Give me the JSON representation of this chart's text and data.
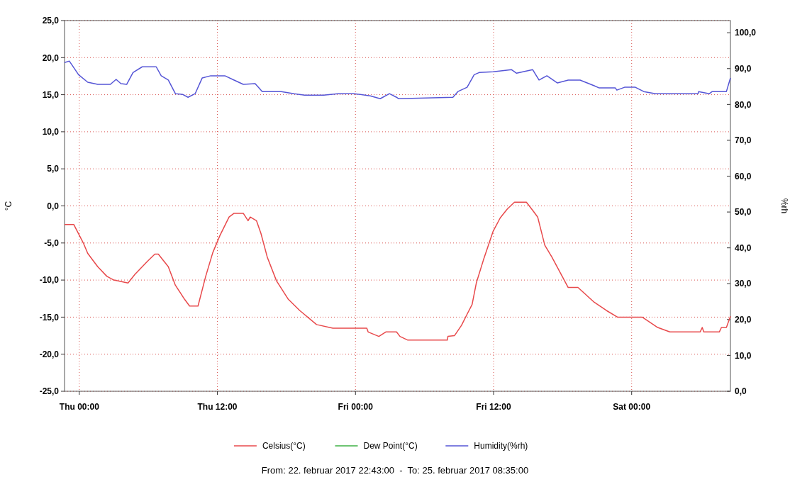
{
  "chart_data": {
    "type": "line",
    "ylabel": "°C",
    "y2label": "%rh",
    "xlim": [
      "2017-02-22T22:43",
      "2017-02-25T08:35"
    ],
    "xticks": [
      {
        "value": "2017-02-23T00:00",
        "label": "Thu 00:00"
      },
      {
        "value": "2017-02-23T12:00",
        "label": "Thu 12:00"
      },
      {
        "value": "2017-02-24T00:00",
        "label": "Fri 00:00"
      },
      {
        "value": "2017-02-24T12:00",
        "label": "Fri 12:00"
      },
      {
        "value": "2017-02-25T00:00",
        "label": "Sat 00:00"
      }
    ],
    "ylim": [
      -25,
      25
    ],
    "yticks": [
      {
        "value": -25,
        "label": "-25,0"
      },
      {
        "value": -20,
        "label": "-20,0"
      },
      {
        "value": -15,
        "label": "-15,0"
      },
      {
        "value": -10,
        "label": "-10,0"
      },
      {
        "value": -5,
        "label": "-5,0"
      },
      {
        "value": 0,
        "label": "0,0"
      },
      {
        "value": 5,
        "label": "5,0"
      },
      {
        "value": 10,
        "label": "10,0"
      },
      {
        "value": 15,
        "label": "15,0"
      },
      {
        "value": 20,
        "label": "20,0"
      },
      {
        "value": 25,
        "label": "25,0"
      }
    ],
    "y2lim": [
      0,
      103.4
    ],
    "y2ticks": [
      {
        "value": 0,
        "label": "0,0"
      },
      {
        "value": 10,
        "label": "10,0"
      },
      {
        "value": 20,
        "label": "20,0"
      },
      {
        "value": 30,
        "label": "30,0"
      },
      {
        "value": 40,
        "label": "40,0"
      },
      {
        "value": 50,
        "label": "50,0"
      },
      {
        "value": 60,
        "label": "60,0"
      },
      {
        "value": 70,
        "label": "70,0"
      },
      {
        "value": 80,
        "label": "80,0"
      },
      {
        "value": 90,
        "label": "90,0"
      },
      {
        "value": 100,
        "label": "100,0"
      }
    ],
    "grid": true,
    "legend": "bottom",
    "annotations": [
      "From: 22. februar 2017 22:43:00  -  To: 25. februar 2017 08:35:00"
    ],
    "series": [
      {
        "name": "Celsius(°C)",
        "color": "#e8494b",
        "x": [
          "2017-02-22T22:43",
          "2017-02-22T23:31",
          "2017-02-23T00:21",
          "2017-02-23T00:44",
          "2017-02-23T01:36",
          "2017-02-23T02:24",
          "2017-02-23T03:00",
          "2017-02-23T04:14",
          "2017-02-23T04:51",
          "2017-02-23T05:54",
          "2017-02-23T06:34",
          "2017-02-23T06:52",
          "2017-02-23T07:44",
          "2017-02-23T08:21",
          "2017-02-23T09:09",
          "2017-02-23T09:35",
          "2017-02-23T10:19",
          "2017-02-23T10:59",
          "2017-02-23T11:36",
          "2017-02-23T12:13",
          "2017-02-23T13:01",
          "2017-02-23T13:27",
          "2017-02-23T14:15",
          "2017-02-23T14:40",
          "2017-02-23T14:51",
          "2017-02-23T15:24",
          "2017-02-23T15:47",
          "2017-02-23T16:20",
          "2017-02-23T17:08",
          "2017-02-23T18:10",
          "2017-02-23T19:09",
          "2017-02-23T20:37",
          "2017-02-23T22:02",
          "2017-02-24T00:59",
          "2017-02-24T01:06",
          "2017-02-24T02:02",
          "2017-02-24T02:38",
          "2017-02-24T03:34",
          "2017-02-24T03:52",
          "2017-02-24T04:33",
          "2017-02-24T07:59",
          "2017-02-24T08:02",
          "2017-02-24T08:36",
          "2017-02-24T09:13",
          "2017-02-24T09:42",
          "2017-02-24T10:08",
          "2017-02-24T10:30",
          "2017-02-24T11:07",
          "2017-02-24T11:58",
          "2017-02-24T12:35",
          "2017-02-24T13:12",
          "2017-02-24T13:49",
          "2017-02-24T14:51",
          "2017-02-24T15:24",
          "2017-02-24T15:50",
          "2017-02-24T16:27",
          "2017-02-24T17:04",
          "2017-02-24T18:29",
          "2017-02-24T19:20",
          "2017-02-24T20:45",
          "2017-02-24T21:48",
          "2017-02-24T22:46",
          "2017-02-25T00:55",
          "2017-02-25T02:16",
          "2017-02-25T03:19",
          "2017-02-25T05:57",
          "2017-02-25T06:08",
          "2017-02-25T06:16",
          "2017-02-25T07:37",
          "2017-02-25T07:48",
          "2017-02-25T08:14",
          "2017-02-25T08:35"
        ],
        "values": [
          -2.5,
          -2.5,
          -5.0,
          -6.4,
          -8.2,
          -9.5,
          -10.0,
          -10.4,
          -9.2,
          -7.5,
          -6.5,
          -6.5,
          -8.2,
          -10.7,
          -12.6,
          -13.5,
          -13.5,
          -9.5,
          -6.3,
          -4.0,
          -1.5,
          -1.0,
          -1.0,
          -2.0,
          -1.5,
          -2.0,
          -3.7,
          -6.9,
          -10.1,
          -12.6,
          -14.1,
          -16.0,
          -16.5,
          -16.5,
          -17.0,
          -17.6,
          -17.0,
          -17.0,
          -17.6,
          -18.1,
          -18.1,
          -17.6,
          -17.5,
          -16.1,
          -14.6,
          -13.3,
          -10.4,
          -7.3,
          -3.4,
          -1.6,
          -0.4,
          0.5,
          0.5,
          -0.6,
          -1.5,
          -5.3,
          -6.9,
          -11.0,
          -11.0,
          -13.0,
          -14.1,
          -15.0,
          -15.0,
          -16.4,
          -17.0,
          -17.0,
          -16.4,
          -17.0,
          -17.0,
          -16.4,
          -16.4,
          -14.9
        ]
      },
      {
        "name": "Dew Point(°C)",
        "color": "#3cb043"
      },
      {
        "name": "Humidity(%rh)",
        "color": "#5555d6",
        "axis": "y2",
        "x": [
          "2017-02-22T22:43",
          "2017-02-22T23:08",
          "2017-02-22T23:56",
          "2017-02-23T00:44",
          "2017-02-23T01:36",
          "2017-02-23T02:42",
          "2017-02-23T03:12",
          "2017-02-23T03:37",
          "2017-02-23T04:07",
          "2017-02-23T04:40",
          "2017-02-23T05:28",
          "2017-02-23T06:41",
          "2017-02-23T07:07",
          "2017-02-23T07:44",
          "2017-02-23T08:21",
          "2017-02-23T08:58",
          "2017-02-23T09:27",
          "2017-02-23T10:04",
          "2017-02-23T10:41",
          "2017-02-23T11:25",
          "2017-02-23T12:39",
          "2017-02-23T13:27",
          "2017-02-23T14:15",
          "2017-02-23T15:17",
          "2017-02-23T15:54",
          "2017-02-23T17:33",
          "2017-02-23T18:40",
          "2017-02-23T19:35",
          "2017-02-23T21:14",
          "2017-02-23T22:28",
          "2017-02-23T23:53",
          "2017-02-24T01:17",
          "2017-02-24T02:09",
          "2017-02-24T02:57",
          "2017-02-24T03:34",
          "2017-02-24T03:45",
          "2017-02-24T08:28",
          "2017-02-24T08:54",
          "2017-02-24T09:42",
          "2017-02-24T10:19",
          "2017-02-24T10:45",
          "2017-02-24T11:58",
          "2017-02-24T13:34",
          "2017-02-24T14:00",
          "2017-02-24T15:24",
          "2017-02-24T15:57",
          "2017-02-24T16:38",
          "2017-02-24T17:33",
          "2017-02-24T18:29",
          "2017-02-24T19:31",
          "2017-02-24T20:45",
          "2017-02-24T21:11",
          "2017-02-24T22:35",
          "2017-02-24T22:43",
          "2017-02-24T23:23",
          "2017-02-25T00:19",
          "2017-02-25T01:03",
          "2017-02-25T02:05",
          "2017-02-25T05:46",
          "2017-02-25T05:49",
          "2017-02-25T06:45",
          "2017-02-25T07:00",
          "2017-02-25T08:14",
          "2017-02-25T08:35"
        ],
        "values": [
          91.7,
          92.1,
          88.3,
          86.2,
          85.6,
          85.6,
          87.0,
          85.8,
          85.6,
          88.9,
          90.5,
          90.5,
          88.0,
          86.8,
          83.0,
          82.8,
          82.0,
          83.0,
          87.4,
          88.0,
          88.0,
          86.8,
          85.6,
          85.8,
          83.6,
          83.6,
          83.0,
          82.6,
          82.6,
          83.0,
          83.0,
          82.4,
          81.6,
          83.0,
          82.0,
          81.6,
          82.0,
          83.6,
          84.8,
          88.3,
          88.9,
          89.1,
          89.7,
          88.7,
          89.7,
          86.8,
          88.0,
          86.0,
          86.8,
          86.8,
          85.2,
          84.6,
          84.6,
          84.0,
          84.8,
          84.8,
          83.6,
          83.0,
          83.0,
          83.6,
          83.0,
          83.6,
          83.6,
          87.4
        ]
      }
    ]
  }
}
